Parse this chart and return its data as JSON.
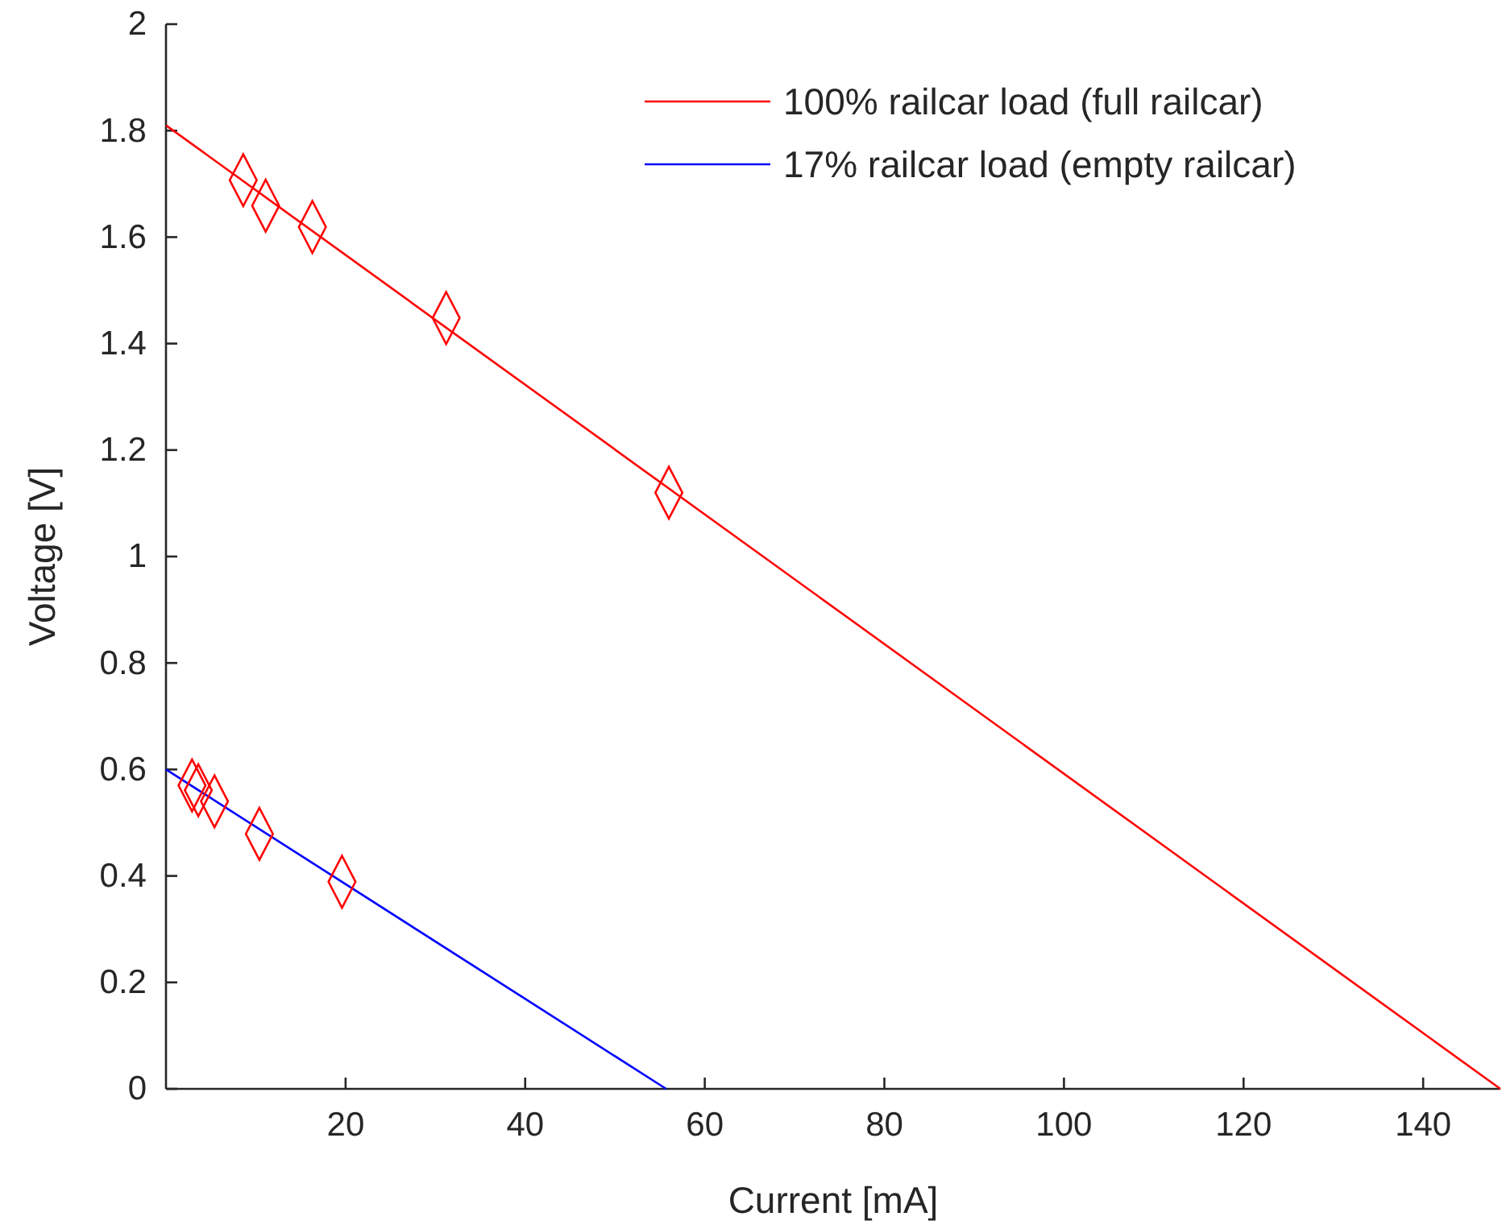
{
  "chart_data": {
    "type": "line",
    "xlabel": "Current [mA]",
    "ylabel": "Voltage [V]",
    "xlim": [
      0,
      148.6
    ],
    "xticks": [
      20,
      40,
      60,
      80,
      100,
      120,
      140
    ],
    "ylim": [
      0,
      2
    ],
    "yticks": [
      0,
      0.2,
      0.4,
      0.6,
      0.8,
      1,
      1.2,
      1.4,
      1.6,
      1.8,
      2
    ],
    "legend": "top right",
    "grid": false,
    "series": [
      {
        "name": "100% railcar load (full railcar)",
        "color": "#ff0000",
        "x": [
          0,
          148.6
        ],
        "values": [
          1.81,
          0
        ],
        "marker": "none"
      },
      {
        "name": "17% railcar load (empty railcar)",
        "color": "#0000ff",
        "x": [
          0,
          55.7
        ],
        "values": [
          0.6,
          0
        ],
        "marker": "none"
      },
      {
        "type": "scatter",
        "color": "#ff0000",
        "marker": "diamond",
        "x": [
          8.6,
          11.1,
          16.3,
          31.2,
          56.0
        ],
        "values": [
          1.707,
          1.659,
          1.619,
          1.448,
          1.12
        ]
      },
      {
        "type": "scatter",
        "color": "#ff0000",
        "marker": "diamond",
        "x": [
          2.9,
          3.6,
          5.4,
          10.4,
          19.6
        ],
        "values": [
          0.57,
          0.561,
          0.54,
          0.479,
          0.389
        ]
      }
    ]
  }
}
